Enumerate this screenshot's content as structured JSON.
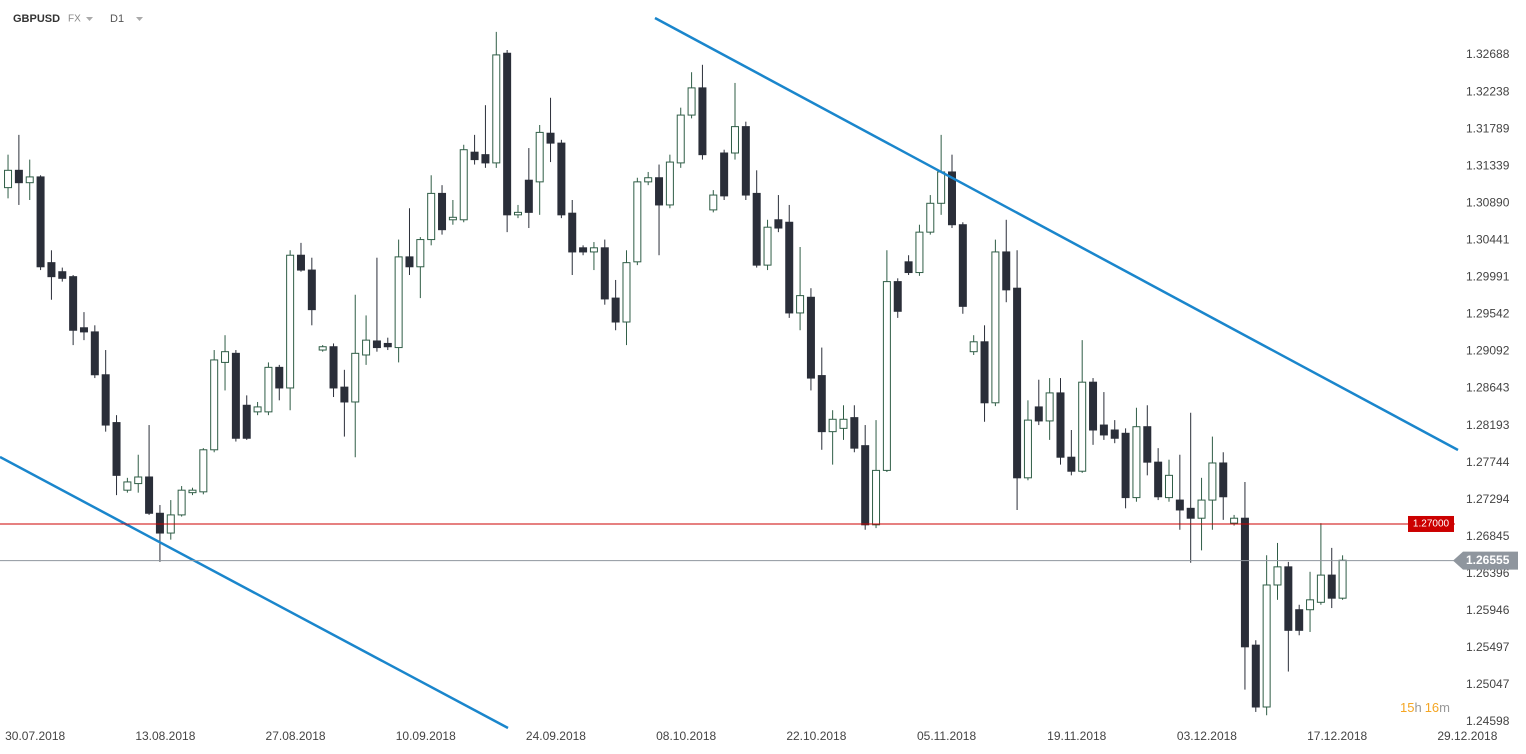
{
  "header": {
    "symbol": "GBPUSD",
    "market": "FX",
    "interval": "D1"
  },
  "timer": {
    "hours": "15",
    "h": "h",
    "minutes": "16",
    "m": "m"
  },
  "chart_data": {
    "type": "candlestick",
    "ylim": [
      1.24598,
      1.33356
    ],
    "xlim": [
      -0.74,
      133.36
    ],
    "yticks": [
      1.32688,
      1.32238,
      1.31789,
      1.31339,
      {
        "value": 1.3089,
        "label": "1.30890"
      },
      1.30441,
      1.29991,
      1.29542,
      1.29092,
      1.28643,
      1.28193,
      1.27744,
      1.27294,
      1.26845,
      1.26396,
      1.25946,
      1.25497,
      1.25047,
      1.24598
    ],
    "xticks": [
      {
        "value": 2.5,
        "label": "30.07.2018"
      },
      {
        "value": 14.5,
        "label": "13.08.2018"
      },
      {
        "value": 26.5,
        "label": "27.08.2018"
      },
      {
        "value": 38.5,
        "label": "10.09.2018"
      },
      {
        "value": 50.5,
        "label": "24.09.2018"
      },
      {
        "value": 62.5,
        "label": "08.10.2018"
      },
      {
        "value": 74.5,
        "label": "22.10.2018"
      },
      {
        "value": 86.5,
        "label": "05.11.2018"
      },
      {
        "value": 98.5,
        "label": "19.11.2018"
      },
      {
        "value": 110.5,
        "label": "03.12.2018"
      },
      {
        "value": 122.5,
        "label": "17.12.2018"
      },
      {
        "value": 134.5,
        "label": "29.12.2018"
      }
    ],
    "up_color": "#2f5d46",
    "down_color": "#2a2e39",
    "price_lines": [
      {
        "value": 1.27,
        "label": "1.27000",
        "color": "#cc0000"
      },
      {
        "value": 1.26555,
        "label": "1.26555",
        "color": "#8f969e"
      }
    ],
    "open": [
      1.3108,
      1.3129,
      1.3114,
      1.3121,
      1.3017,
      1.3006,
      1.3,
      1.2938,
      1.2933,
      1.2881,
      1.2823,
      1.2741,
      1.2749,
      1.2757,
      1.2713,
      1.2689,
      1.2711,
      1.2738,
      1.2739,
      1.279,
      1.2896,
      1.2907,
      1.2844,
      1.2836,
      1.2836,
      1.289,
      1.2865,
      1.3026,
      1.3008,
      1.2911,
      1.2915,
      1.2866,
      1.2848,
      1.2905,
      1.2922,
      1.2919,
      1.2914,
      1.3024,
      1.3012,
      1.3045,
      1.3101,
      1.3069,
      1.3069,
      1.3151,
      1.3148,
      1.3138,
      1.3271,
      1.3075,
      1.3117,
      1.3115,
      1.3174,
      1.3162,
      1.3077,
      1.3035,
      1.303,
      1.3035,
      1.2974,
      1.2945,
      1.3018,
      1.3115,
      1.312,
      1.3087,
      1.3138,
      1.3196,
      1.3229,
      1.3081,
      1.315,
      1.315,
      1.3182,
      1.3101,
      1.3014,
      1.3069,
      1.3066,
      1.2956,
      1.2975,
      1.288,
      1.2812,
      1.2816,
      1.2829,
      1.2795,
      1.2699,
      1.2765,
      1.2994,
      1.3018,
      1.3005,
      1.3054,
      1.3089,
      1.3127,
      1.3063,
      1.2909,
      1.2921,
      1.2847,
      1.303,
      1.2986,
      1.2756,
      1.2842,
      1.2825,
      1.2859,
      1.2781,
      1.2764,
      1.2872,
      1.282,
      1.2814,
      1.281,
      1.2732,
      1.2818,
      1.2775,
      1.2732,
      1.2729,
      1.2719,
      1.2707,
      1.2729,
      1.2774,
      1.2701,
      1.2707,
      1.2553,
      1.2478,
      1.2626,
      1.2648,
      1.2596,
      1.2596,
      1.2605,
      1.2638,
      1.261
    ],
    "high": [
      1.3148,
      1.3172,
      1.3142,
      1.3123,
      1.3032,
      1.3011,
      1.3002,
      1.2957,
      1.2941,
      1.2911,
      1.2832,
      1.2756,
      1.2784,
      1.282,
      1.2723,
      1.2729,
      1.2746,
      1.2744,
      1.2792,
      1.2911,
      1.2929,
      1.2911,
      1.2856,
      1.2848,
      1.2896,
      1.2893,
      1.3032,
      1.3041,
      1.3023,
      1.2917,
      1.2919,
      1.2887,
      1.2978,
      1.2953,
      1.3023,
      1.2926,
      1.3045,
      1.3083,
      1.3048,
      1.3123,
      1.3111,
      1.3093,
      1.316,
      1.3172,
      1.3208,
      1.3297,
      1.3275,
      1.3087,
      1.3156,
      1.3184,
      1.3217,
      1.3166,
      1.3093,
      1.3038,
      1.3042,
      1.3045,
      1.2996,
      1.3032,
      1.312,
      1.3127,
      1.3136,
      1.3148,
      1.3205,
      1.3248,
      1.3257,
      1.3105,
      1.3154,
      1.3235,
      1.3188,
      1.3129,
      1.3069,
      1.3099,
      1.3087,
      1.3036,
      1.2986,
      1.2914,
      1.2838,
      1.2844,
      1.2844,
      1.282,
      1.2826,
      1.3032,
      1.2998,
      1.3026,
      1.3063,
      1.3099,
      1.3172,
      1.3148,
      1.3066,
      1.2929,
      1.2941,
      1.3045,
      1.3069,
      1.3032,
      1.285,
      1.2875,
      1.2877,
      1.2877,
      1.2814,
      1.2923,
      1.2877,
      1.286,
      1.2826,
      1.2816,
      1.2841,
      1.2844,
      1.2792,
      1.2778,
      1.2784,
      1.2835,
      1.2756,
      1.2806,
      1.2787,
      1.2711,
      1.2751,
      1.2559,
      1.2662,
      1.2677,
      1.2654,
      1.2602,
      1.2642,
      1.2701,
      1.2671,
      1.2662
    ],
    "low": [
      1.3095,
      1.3087,
      1.3093,
      1.3008,
      1.2972,
      1.2994,
      1.2917,
      1.2923,
      1.2877,
      1.2812,
      1.2735,
      1.2738,
      1.2738,
      1.2711,
      1.2654,
      1.2681,
      1.2709,
      1.2735,
      1.2736,
      1.2787,
      1.2862,
      1.28,
      1.2802,
      1.2832,
      1.2832,
      1.285,
      1.2838,
      1.3006,
      1.2941,
      1.2909,
      1.2854,
      1.2806,
      1.2781,
      1.2893,
      1.2909,
      1.2911,
      1.2896,
      1.3002,
      1.2974,
      1.3038,
      1.3051,
      1.3063,
      1.3066,
      1.3136,
      1.3132,
      1.3132,
      1.3054,
      1.3071,
      1.3059,
      1.3075,
      1.3139,
      1.3071,
      1.3002,
      1.3026,
      1.3008,
      1.2966,
      1.2935,
      1.2917,
      1.3014,
      1.3111,
      1.3026,
      1.3083,
      1.3132,
      1.3192,
      1.3142,
      1.3078,
      1.3093,
      1.3142,
      1.3093,
      1.3011,
      1.3008,
      1.3054,
      1.295,
      1.2935,
      1.2862,
      1.279,
      1.2772,
      1.2802,
      1.2787,
      1.2693,
      1.2695,
      1.2763,
      1.295,
      1.3002,
      1.3001,
      1.3051,
      1.3075,
      1.3059,
      1.2955,
      1.2905,
      1.2824,
      1.2843,
      1.2969,
      1.2717,
      1.2753,
      1.282,
      1.2802,
      1.2772,
      1.2759,
      1.2762,
      1.2796,
      1.2802,
      1.2798,
      1.2719,
      1.2727,
      1.2759,
      1.2729,
      1.2727,
      1.2693,
      1.2653,
      1.2668,
      1.2693,
      1.2705,
      1.2698,
      1.2499,
      1.2472,
      1.2468,
      1.2608,
      1.2521,
      1.2565,
      1.2569,
      1.2602,
      1.2598,
      1.2608
    ],
    "close": [
      1.3129,
      1.3114,
      1.3121,
      1.3012,
      1.3,
      1.2998,
      1.2935,
      1.2933,
      1.2881,
      1.282,
      1.2759,
      1.2751,
      1.2757,
      1.2713,
      1.2689,
      1.2711,
      1.2741,
      1.2741,
      1.279,
      1.2899,
      1.2909,
      1.2804,
      1.2804,
      1.2842,
      1.289,
      1.2865,
      1.3026,
      1.3008,
      1.296,
      1.2915,
      1.2865,
      1.2848,
      1.2907,
      1.2923,
      1.2914,
      1.2915,
      1.3024,
      1.3012,
      1.3045,
      1.3101,
      1.3057,
      1.3072,
      1.3154,
      1.3142,
      1.3138,
      1.3269,
      1.3075,
      1.3078,
      1.3078,
      1.3175,
      1.3162,
      1.3075,
      1.303,
      1.303,
      1.3035,
      1.2973,
      1.2945,
      1.3017,
      1.3115,
      1.312,
      1.3087,
      1.3139,
      1.3196,
      1.3229,
      1.3148,
      1.3099,
      1.3098,
      1.3182,
      1.3099,
      1.3014,
      1.306,
      1.3059,
      1.2956,
      1.2977,
      1.2877,
      1.2812,
      1.2827,
      1.2827,
      1.2792,
      1.2699,
      1.2765,
      1.2994,
      1.2958,
      1.3005,
      1.3054,
      1.3089,
      1.3127,
      1.3063,
      1.2964,
      1.2921,
      1.2847,
      1.303,
      1.2984,
      1.2756,
      1.2826,
      1.2825,
      1.2859,
      1.2781,
      1.2764,
      1.2872,
      1.2814,
      1.2808,
      1.2804,
      1.2732,
      1.2818,
      1.2775,
      1.2733,
      1.2759,
      1.2717,
      1.2707,
      1.2729,
      1.2774,
      1.2733,
      1.2707,
      1.2551,
      1.2478,
      1.2626,
      1.2648,
      1.2571,
      1.2571,
      1.2608,
      1.2638,
      1.261,
      1.2656
    ]
  }
}
